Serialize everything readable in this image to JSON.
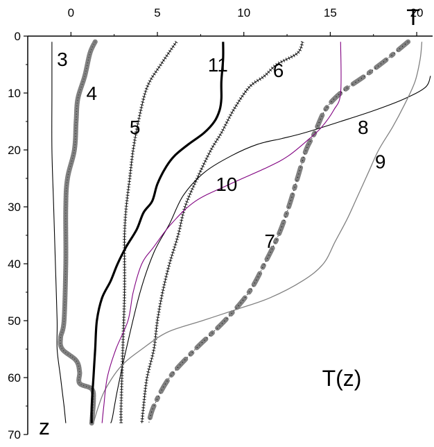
{
  "chart_data": {
    "type": "line",
    "title": "",
    "annotation": "T(z)",
    "xlabel": "T",
    "ylabel": "z",
    "xlim": [
      -2.5,
      21
    ],
    "ylim": [
      0,
      70
    ],
    "y_inverted": true,
    "x_axis_position": "top",
    "grid": false,
    "legend": "none",
    "x_ticks": [
      0,
      5,
      10,
      15,
      20
    ],
    "y_ticks": [
      0,
      10,
      20,
      30,
      40,
      50,
      60,
      70
    ],
    "series": [
      {
        "name": "3",
        "style": "thin-solid",
        "color": "#000000",
        "label_at": {
          "T": -0.5,
          "z": 4
        },
        "points": [
          [
            -1.1,
            1
          ],
          [
            -1.1,
            10
          ],
          [
            -1.1,
            20
          ],
          [
            -1.0,
            30
          ],
          [
            -0.9,
            40
          ],
          [
            -0.8,
            50
          ],
          [
            -0.8,
            55
          ],
          [
            -0.6,
            60
          ],
          [
            -0.4,
            65
          ],
          [
            -0.3,
            68
          ]
        ]
      },
      {
        "name": "4",
        "style": "thick-gray-beaded",
        "color": "#808080",
        "label_at": {
          "T": 1.2,
          "z": 10
        },
        "points": [
          [
            1.4,
            1
          ],
          [
            1.1,
            3
          ],
          [
            0.8,
            7
          ],
          [
            0.4,
            11
          ],
          [
            0.3,
            15
          ],
          [
            0.2,
            20
          ],
          [
            -0.2,
            25
          ],
          [
            -0.3,
            30
          ],
          [
            -0.3,
            40
          ],
          [
            -0.4,
            50
          ],
          [
            -0.6,
            53
          ],
          [
            -0.5,
            55
          ],
          [
            0.3,
            57
          ],
          [
            0.5,
            59
          ],
          [
            0.5,
            61
          ],
          [
            1.2,
            62
          ],
          [
            1.3,
            64
          ],
          [
            1.2,
            68
          ]
        ]
      },
      {
        "name": "5",
        "style": "dotted-cross",
        "color": "#000000",
        "label_at": {
          "T": 3.7,
          "z": 16
        },
        "points": [
          [
            6.1,
            1
          ],
          [
            5.2,
            5
          ],
          [
            4.4,
            9
          ],
          [
            3.9,
            15
          ],
          [
            3.6,
            20
          ],
          [
            3.4,
            25
          ],
          [
            3.2,
            30
          ],
          [
            3.1,
            35
          ],
          [
            3.1,
            45
          ],
          [
            3.0,
            55
          ],
          [
            2.9,
            65
          ],
          [
            2.9,
            68
          ]
        ]
      },
      {
        "name": "6",
        "style": "dotted-cross",
        "color": "#000000",
        "label_at": {
          "T": 12.0,
          "z": 6
        },
        "points": [
          [
            13.4,
            1
          ],
          [
            13.1,
            3
          ],
          [
            11.9,
            5
          ],
          [
            11.2,
            7
          ],
          [
            10.3,
            9
          ],
          [
            9.4,
            13
          ],
          [
            8.7,
            17
          ],
          [
            8.1,
            20
          ],
          [
            7.3,
            25
          ],
          [
            6.6,
            30
          ],
          [
            6.2,
            35
          ],
          [
            5.7,
            40
          ],
          [
            5.3,
            45
          ],
          [
            5.0,
            50
          ],
          [
            4.8,
            55
          ],
          [
            4.4,
            60
          ],
          [
            4.2,
            65
          ],
          [
            4.1,
            68
          ]
        ]
      },
      {
        "name": "7",
        "style": "thick-gray-dashdot",
        "color": "#808080",
        "label_at": {
          "T": 11.5,
          "z": 36
        },
        "points": [
          [
            19.5,
            1
          ],
          [
            18.3,
            4
          ],
          [
            17.0,
            7
          ],
          [
            15.6,
            10
          ],
          [
            14.7,
            13
          ],
          [
            14.1,
            17
          ],
          [
            13.6,
            20
          ],
          [
            13.1,
            25
          ],
          [
            12.6,
            30
          ],
          [
            12.0,
            35
          ],
          [
            11.2,
            40
          ],
          [
            10.3,
            45
          ],
          [
            8.9,
            50
          ],
          [
            7.2,
            55
          ],
          [
            5.7,
            60
          ],
          [
            4.8,
            65
          ],
          [
            4.5,
            68
          ]
        ]
      },
      {
        "name": "8",
        "style": "thin-solid",
        "color": "#000000",
        "label_at": {
          "T": 16.9,
          "z": 16
        },
        "points": [
          [
            20.8,
            7
          ],
          [
            20.5,
            9
          ],
          [
            19.3,
            11
          ],
          [
            17.6,
            13
          ],
          [
            15.6,
            15
          ],
          [
            13.5,
            17
          ],
          [
            12.2,
            18
          ],
          [
            10.8,
            19
          ],
          [
            9.3,
            21
          ],
          [
            7.7,
            24
          ],
          [
            6.5,
            28
          ],
          [
            5.7,
            33
          ],
          [
            4.8,
            38
          ],
          [
            4.0,
            45
          ],
          [
            3.2,
            55
          ],
          [
            2.7,
            62
          ],
          [
            2.4,
            67
          ],
          [
            2.3,
            68
          ]
        ]
      },
      {
        "name": "9",
        "style": "thin-gray-solid",
        "color": "#808080",
        "label_at": {
          "T": 17.9,
          "z": 22
        },
        "points": [
          [
            20.3,
            1
          ],
          [
            20.2,
            4
          ],
          [
            19.9,
            8
          ],
          [
            19.3,
            12
          ],
          [
            18.6,
            16
          ],
          [
            17.8,
            20
          ],
          [
            17.2,
            24
          ],
          [
            16.6,
            28
          ],
          [
            16.0,
            32
          ],
          [
            15.3,
            36
          ],
          [
            14.6,
            40
          ],
          [
            13.4,
            43
          ],
          [
            11.5,
            46
          ],
          [
            9.6,
            48
          ],
          [
            7.6,
            50
          ],
          [
            5.6,
            52
          ],
          [
            4.1,
            55
          ],
          [
            2.9,
            58
          ],
          [
            2.0,
            62
          ],
          [
            1.6,
            65
          ],
          [
            1.3,
            68
          ]
        ]
      },
      {
        "name": "10",
        "style": "thin-solid",
        "color": "#800080",
        "label_at": {
          "T": 9.0,
          "z": 26
        },
        "points": [
          [
            15.6,
            1
          ],
          [
            15.6,
            10
          ],
          [
            15.2,
            13
          ],
          [
            14.5,
            16
          ],
          [
            13.8,
            18
          ],
          [
            12.6,
            21
          ],
          [
            11.4,
            23
          ],
          [
            9.2,
            26
          ],
          [
            7.2,
            29
          ],
          [
            5.8,
            33
          ],
          [
            4.8,
            37
          ],
          [
            4.1,
            40
          ],
          [
            3.6,
            45
          ],
          [
            3.3,
            50
          ],
          [
            2.6,
            55
          ],
          [
            2.1,
            60
          ],
          [
            1.9,
            65
          ],
          [
            1.8,
            68
          ]
        ]
      },
      {
        "name": "11",
        "style": "thick-solid",
        "color": "#000000",
        "label_at": {
          "T": 8.5,
          "z": 5
        },
        "points": [
          [
            8.8,
            1
          ],
          [
            8.8,
            4
          ],
          [
            8.7,
            8
          ],
          [
            8.7,
            11
          ],
          [
            8.6,
            13
          ],
          [
            8.3,
            15
          ],
          [
            7.7,
            17
          ],
          [
            6.8,
            19
          ],
          [
            6.0,
            21
          ],
          [
            5.5,
            23
          ],
          [
            5.0,
            26
          ],
          [
            4.7,
            29
          ],
          [
            4.2,
            31
          ],
          [
            3.8,
            34
          ],
          [
            3.2,
            37
          ],
          [
            2.7,
            40
          ],
          [
            2.3,
            43
          ],
          [
            1.8,
            46
          ],
          [
            1.5,
            50
          ],
          [
            1.4,
            55
          ],
          [
            1.3,
            60
          ],
          [
            1.2,
            65
          ],
          [
            1.2,
            68
          ]
        ]
      }
    ]
  }
}
